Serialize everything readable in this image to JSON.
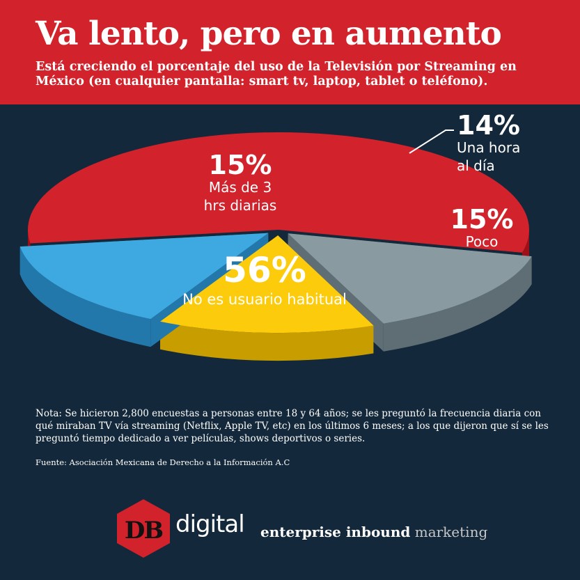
{
  "header": {
    "title": "Va lento, pero en aumento",
    "subtitle": "Está creciendo el porcentaje del uso de la Televisión por Streaming en México (en cualquier pantalla: smart tv, laptop, tablet o teléfono)."
  },
  "chart_data": {
    "type": "pie",
    "title": "Va lento, pero en aumento",
    "slices": [
      {
        "label_lines": [
          "No es usuario habitual"
        ],
        "value": 56,
        "value_label": "56%",
        "color": "#d2232c",
        "side_color": "#9e1017"
      },
      {
        "label_lines": [
          "Más de 3",
          "hrs diarias"
        ],
        "value": 15,
        "value_label": "15%",
        "color": "#8a9aa1",
        "side_color": "#5f6e74"
      },
      {
        "label_lines": [
          "Una hora",
          "al día"
        ],
        "value": 14,
        "value_label": "14%",
        "color": "#fccb0b",
        "side_color": "#c79d00"
      },
      {
        "label_lines": [
          "Poco"
        ],
        "value": 15,
        "value_label": "15%",
        "color": "#3ea8e0",
        "side_color": "#2278aa"
      }
    ],
    "legend": "none",
    "grid": false
  },
  "notes": {
    "note": "Nota: Se hicieron 2,800 encuestas a personas entre 18 y 64 años; se les preguntó la frecuencia diaria con qué miraban TV vía streaming (Netflix, Apple TV, etc) en los últimos 6 meses; a los que dijeron que sí se les preguntó tiempo dedicado a ver películas, shows deportivos o series.",
    "source": "Fuente: Asociación Mexicana de Derecho a la Información A.C"
  },
  "footer": {
    "logo_text": "DB",
    "brand": "digital",
    "tagline_strong": "enterprise inbound",
    "tagline_light": "marketing",
    "logo_color": "#d2232c"
  }
}
